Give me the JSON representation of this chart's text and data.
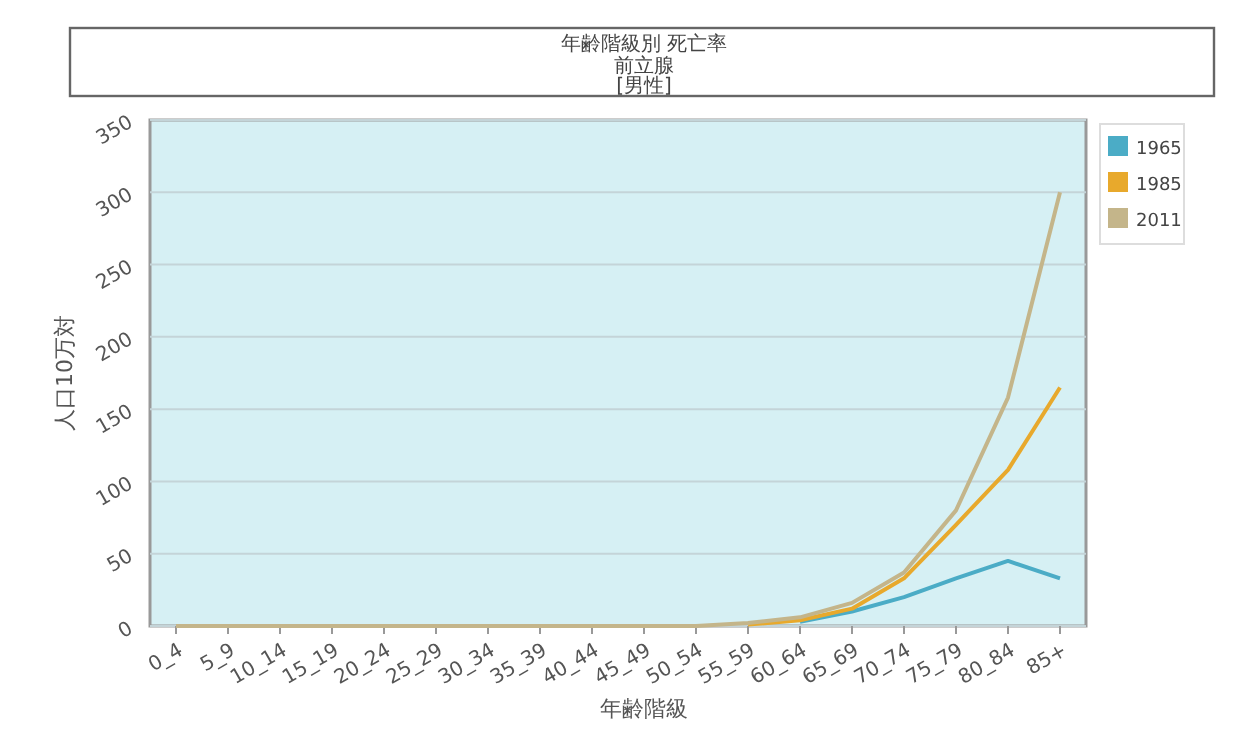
{
  "chart_data": {
    "type": "line",
    "title": "年齢階級別 死亡率",
    "subtitle": "前立腺\n[男性]",
    "xlabel": "年齢階級",
    "ylabel": "人口10万対",
    "categories": [
      "0_4",
      "5_9",
      "10_14",
      "15_19",
      "20_24",
      "25_29",
      "30_34",
      "35_39",
      "40_44",
      "45_49",
      "50_54",
      "55_59",
      "60_64",
      "65_69",
      "70_74",
      "75_79",
      "80_84",
      "85+"
    ],
    "series": [
      {
        "name": "1965",
        "color": "#4bacc6",
        "values": [
          null,
          null,
          null,
          null,
          null,
          null,
          null,
          null,
          null,
          null,
          null,
          null,
          3,
          10,
          20,
          33,
          45,
          33
        ]
      },
      {
        "name": "1985",
        "color": "#e8a92c",
        "values": [
          null,
          null,
          null,
          null,
          null,
          null,
          null,
          null,
          null,
          null,
          null,
          1,
          4,
          12,
          33,
          70,
          108,
          165
        ]
      },
      {
        "name": "2011",
        "color": "#c4b58a",
        "values": [
          0,
          0,
          0,
          0,
          0,
          0,
          0,
          0,
          0,
          0,
          0,
          2,
          6,
          16,
          37,
          80,
          158,
          300
        ]
      }
    ],
    "ylim": [
      0,
      350
    ],
    "yticks": [
      0,
      50,
      100,
      150,
      200,
      250,
      300,
      350
    ],
    "grid": "y",
    "legend": "right",
    "marker": "none",
    "line_style": "solid"
  }
}
